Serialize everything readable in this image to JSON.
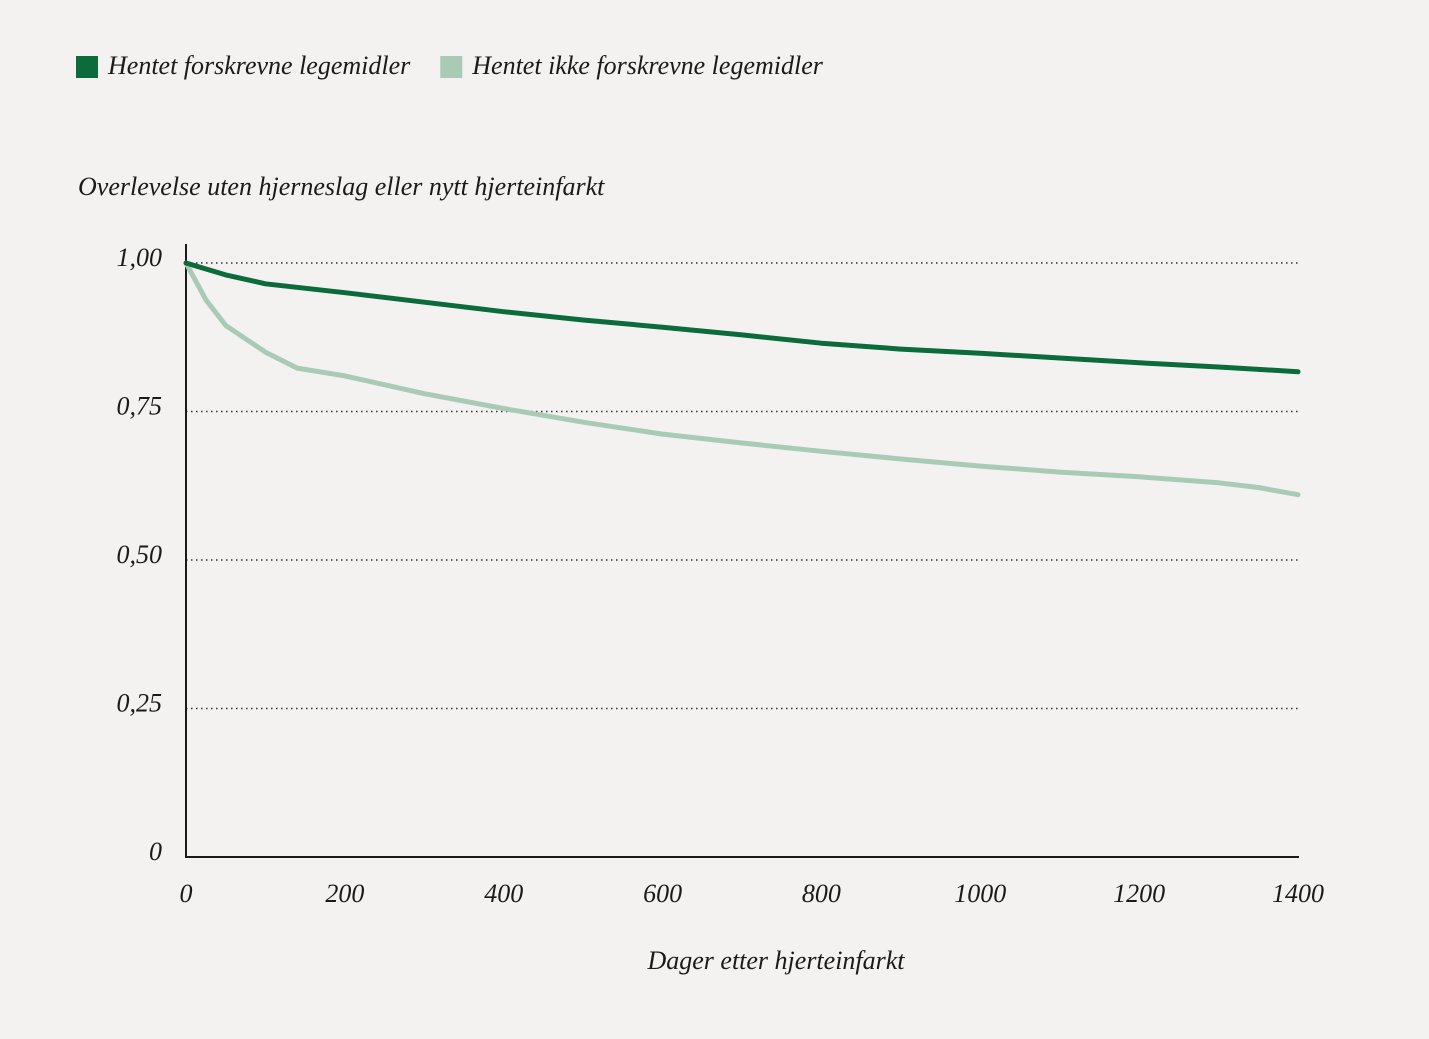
{
  "chart_data": {
    "type": "line",
    "y_label": "Overlevelse uten hjerneslag eller nytt hjerteinfarkt",
    "x_label": "Dager etter hjerteinfarkt",
    "legend": "top-left",
    "grid": true,
    "xlim": [
      0,
      1400
    ],
    "xticks": [
      0,
      200,
      400,
      600,
      800,
      1000,
      1200,
      1400
    ],
    "ylim": [
      0,
      1
    ],
    "yticks": [
      0,
      {
        "value": 0.25,
        "label": "0,25"
      },
      {
        "value": 0.5,
        "label": "0,50"
      },
      {
        "value": 0.75,
        "label": "0,75"
      },
      {
        "value": 1,
        "label": "1,00"
      }
    ],
    "series": [
      {
        "name": "Hentet forskrevne legemidler",
        "color": "#0b6b3a",
        "x": [
          0,
          50,
          100,
          200,
          300,
          400,
          500,
          600,
          700,
          800,
          900,
          1000,
          1100,
          1200,
          1300,
          1400
        ],
        "values": [
          1.0,
          0.98,
          0.965,
          0.95,
          0.934,
          0.918,
          0.904,
          0.892,
          0.879,
          0.865,
          0.855,
          0.848,
          0.84,
          0.832,
          0.825,
          0.817
        ]
      },
      {
        "name": "Hentet ikke forskrevne legemidler",
        "color": "#a9cbb6",
        "x": [
          0,
          25,
          50,
          100,
          140,
          200,
          300,
          400,
          500,
          600,
          700,
          800,
          900,
          1000,
          1100,
          1200,
          1300,
          1350,
          1400
        ],
        "values": [
          1.0,
          0.938,
          0.895,
          0.85,
          0.823,
          0.81,
          0.78,
          0.755,
          0.732,
          0.712,
          0.697,
          0.683,
          0.67,
          0.658,
          0.648,
          0.64,
          0.63,
          0.622,
          0.61
        ]
      }
    ]
  }
}
